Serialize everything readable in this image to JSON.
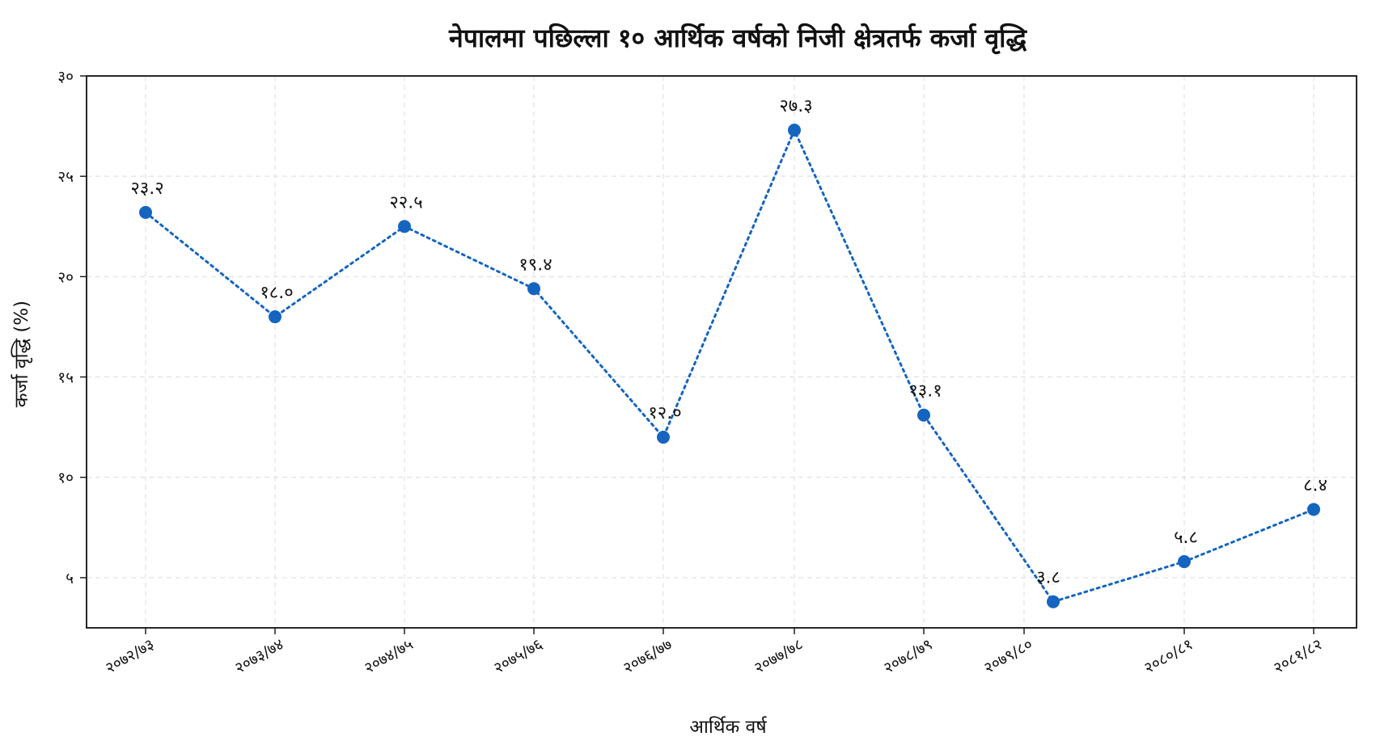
{
  "chart_data": {
    "type": "line",
    "title": "नेपालमा पछिल्ला १० आर्थिक वर्षको निजी क्षेत्रतर्फ कर्जा वृद्धि",
    "xlabel": "आर्थिक वर्ष",
    "ylabel": "कर्जा वृद्धि (%)",
    "categories": [
      "२०७२/७३",
      "२०७३/७४",
      "२०७४/७५",
      "२०७५/७६",
      "२०७६/७७",
      "२०७७/७८",
      "२०७८/७९",
      "२०७९/८०",
      "२०८०/८१",
      "२०८१/८२"
    ],
    "series": [
      {
        "values": [
          23.2,
          18.0,
          22.5,
          19.4,
          12.0,
          27.3,
          13.1,
          3.8,
          5.8,
          8.4
        ],
        "data_labels": [
          "२३.२",
          "१८.०",
          "२२.५",
          "१९.४",
          "१२.०",
          "२७.३",
          "१३.१",
          "३.८",
          "५.८",
          "८.४"
        ],
        "color": "#1565c0"
      }
    ],
    "ylim": [
      2.5,
      30
    ],
    "y_ticks": [
      5,
      10,
      15,
      20,
      25,
      30
    ],
    "y_tick_labels": [
      "५",
      "१०",
      "१५",
      "२०",
      "२५",
      "३०"
    ],
    "grid": true,
    "legend": "none"
  }
}
